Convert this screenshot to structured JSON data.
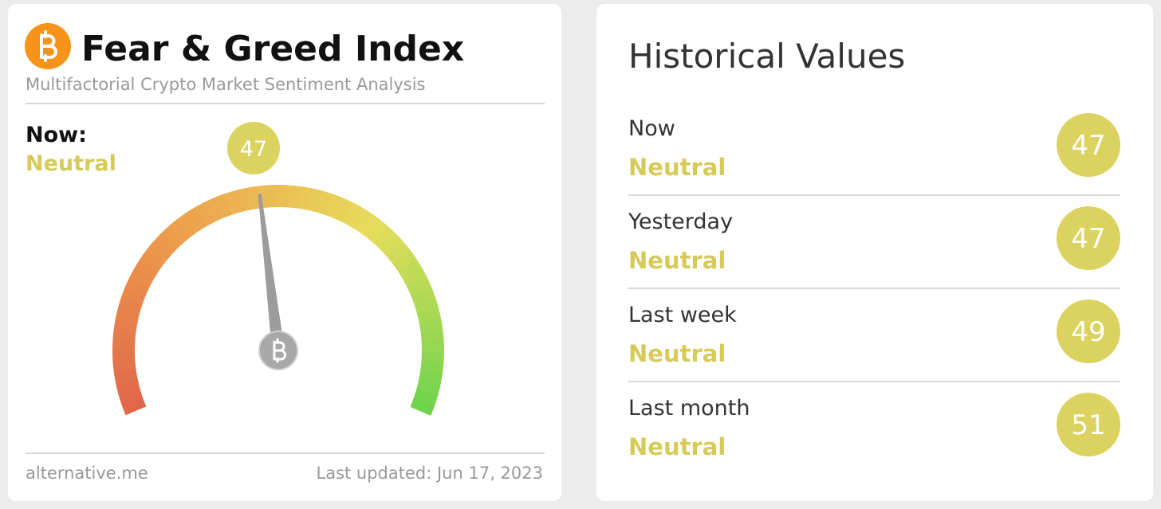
{
  "header": {
    "title": "Fear & Greed Index",
    "subtitle": "Multifactorial Crypto Market Sentiment Analysis"
  },
  "current": {
    "label": "Now:",
    "classification": "Neutral",
    "value": 47
  },
  "gauge": {
    "range": [
      0,
      100
    ]
  },
  "footer": {
    "source": "alternative.me",
    "updated": "Last updated: Jun 17, 2023"
  },
  "history": {
    "title": "Historical Values",
    "rows": [
      {
        "label": "Now",
        "classification": "Neutral",
        "value": 47
      },
      {
        "label": "Yesterday",
        "classification": "Neutral",
        "value": 47
      },
      {
        "label": "Last week",
        "classification": "Neutral",
        "value": 49
      },
      {
        "label": "Last month",
        "classification": "Neutral",
        "value": 51
      }
    ]
  }
}
